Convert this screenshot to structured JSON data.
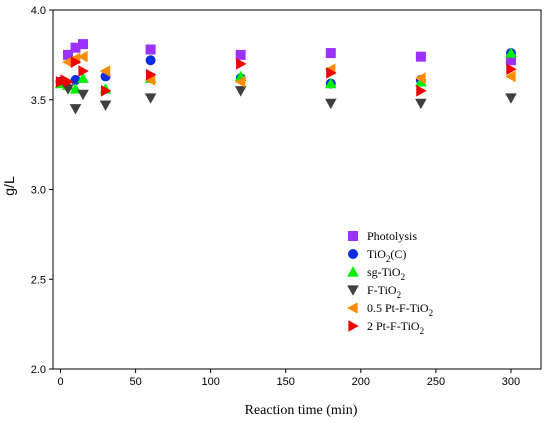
{
  "chart_data": {
    "type": "scatter",
    "xlabel": "Reaction time (min)",
    "ylabel": "g/L",
    "xlim": [
      -5,
      320
    ],
    "ylim": [
      2.0,
      4.0
    ],
    "xticks": [
      0,
      50,
      100,
      150,
      200,
      250,
      300
    ],
    "yticks": [
      2.0,
      2.5,
      3.0,
      3.5,
      4.0
    ],
    "ytick_labels": [
      "2.0",
      "2.5",
      "3.0",
      "3.5",
      "4.0"
    ],
    "grid": false,
    "legend_position": "bottom-right",
    "series": [
      {
        "name": "Photolysis",
        "name_html": "Photolysis",
        "marker": "square",
        "color": "#9B30FF",
        "x": [
          5,
          10,
          15,
          60,
          120,
          180,
          240,
          300
        ],
        "y": [
          3.75,
          3.79,
          3.81,
          3.78,
          3.75,
          3.76,
          3.74,
          3.72
        ]
      },
      {
        "name": "TiO2(C)",
        "name_html": "TiO<sub>2</sub>(C)",
        "marker": "circle",
        "color": "#0A2BE0",
        "x": [
          0,
          10,
          30,
          60,
          120,
          180,
          240,
          300
        ],
        "y": [
          3.6,
          3.61,
          3.63,
          3.72,
          3.62,
          3.59,
          3.61,
          3.76
        ]
      },
      {
        "name": "sg-TiO2",
        "name_html": "sg-TiO<sub>2</sub>",
        "marker": "triangle-up",
        "color": "#00EE00",
        "x": [
          0,
          5,
          10,
          15,
          30,
          60,
          120,
          180,
          240,
          300
        ],
        "y": [
          3.59,
          3.58,
          3.56,
          3.62,
          3.56,
          3.62,
          3.63,
          3.59,
          3.6,
          3.76
        ]
      },
      {
        "name": "F-TiO2",
        "name_html": "F-TiO<sub>2</sub>",
        "marker": "triangle-down",
        "color": "#404040",
        "x": [
          5,
          10,
          15,
          30,
          60,
          120,
          180,
          240,
          300
        ],
        "y": [
          3.56,
          3.45,
          3.53,
          3.47,
          3.51,
          3.55,
          3.48,
          3.48,
          3.51
        ]
      },
      {
        "name": "0.5 Pt-F-TiO2",
        "name_html": "0.5 Pt-F-TiO<sub>2</sub>",
        "marker": "triangle-left",
        "color": "#FF8C00",
        "x": [
          5,
          10,
          15,
          30,
          60,
          120,
          180,
          240,
          300
        ],
        "y": [
          3.71,
          3.73,
          3.74,
          3.66,
          3.61,
          3.6,
          3.67,
          3.62,
          3.63
        ]
      },
      {
        "name": "2 Pt-F-TiO2",
        "name_html": "2 Pt-F-TiO<sub>2</sub>",
        "marker": "triangle-right",
        "color": "#EE0000",
        "x": [
          0,
          3,
          5,
          10,
          15,
          30,
          60,
          120,
          180,
          240,
          300
        ],
        "y": [
          3.6,
          3.61,
          3.6,
          3.71,
          3.66,
          3.55,
          3.64,
          3.7,
          3.65,
          3.55,
          3.67
        ]
      }
    ]
  }
}
